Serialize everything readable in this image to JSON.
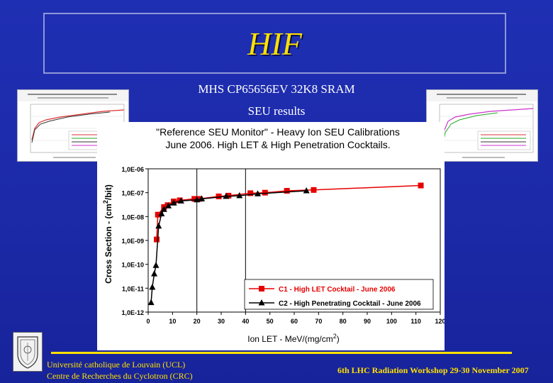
{
  "slide": {
    "title": "HIF",
    "subtitle_1": "MHS   CP65656EV  32K8  SRAM",
    "subtitle_2": "SEU results"
  },
  "footer": {
    "left_line1": "Université catholique de Louvain  (UCL)",
    "left_line2": "Centre de Recherches du Cyclotron (CRC)",
    "right": "6th LHC Radiation Workshop 29-30 November 2007"
  },
  "colors": {
    "background": "#1f2fb3",
    "accent": "#ffe100",
    "series_1": "#e60000",
    "series_2": "#000000"
  },
  "chart_data": {
    "type": "line",
    "title_line1": "\"Reference SEU Monitor\" - Heavy Ion SEU Calibrations",
    "title_line2": "June 2006. High LET & High Penetration Cocktails.",
    "xlabel": "Ion LET - MeV/(mg/cm",
    "xlabel_sup": "2",
    "xlabel_tail": ")",
    "ylabel": "Cross Section - (cm",
    "ylabel_sup": "2",
    "ylabel_tail": "/bit)",
    "x_ticks": [
      "0",
      "10",
      "20",
      "30",
      "40",
      "50",
      "60",
      "70",
      "80",
      "90",
      "100",
      "110",
      "120"
    ],
    "y_ticks": [
      "1,0E-12",
      "1,0E-11",
      "1,0E-10",
      "1,0E-09",
      "1,0E-08",
      "1,0E-07",
      "1,0E-06"
    ],
    "xlim": [
      0,
      120
    ],
    "ylim": [
      1e-12,
      1e-06
    ],
    "yscale": "log",
    "vertical_lines_x": [
      20,
      40
    ],
    "legend_position": "bottom-right",
    "series": [
      {
        "name": "C1 - High LET Cocktail - June 2006",
        "color": "#e60000",
        "marker": "square",
        "points": [
          [
            3.5,
            1.1e-09
          ],
          [
            4,
            1.2e-08
          ],
          [
            6.5,
            2.5e-08
          ],
          [
            8,
            3e-08
          ],
          [
            10.5,
            4.3e-08
          ],
          [
            13,
            4.8e-08
          ],
          [
            19,
            5.5e-08
          ],
          [
            21,
            5.5e-08
          ],
          [
            29,
            7e-08
          ],
          [
            33,
            7.5e-08
          ],
          [
            42,
            9.5e-08
          ],
          [
            48,
            1e-07
          ],
          [
            57,
            1.2e-07
          ],
          [
            68,
            1.3e-07
          ],
          [
            112,
            2e-07
          ]
        ]
      },
      {
        "name": "C2 - High Penetrating Cocktail - June 2006",
        "color": "#000000",
        "marker": "triangle",
        "points": [
          [
            1.2,
            2.5e-12
          ],
          [
            1.7,
            1.1e-11
          ],
          [
            2.5,
            4e-11
          ],
          [
            3.2,
            9e-11
          ],
          [
            4.3,
            4e-09
          ],
          [
            5.5,
            1.3e-08
          ],
          [
            6.5,
            2e-08
          ],
          [
            8.3,
            2.8e-08
          ],
          [
            10.5,
            3.7e-08
          ],
          [
            13.5,
            4.5e-08
          ],
          [
            20,
            5e-08
          ],
          [
            22,
            5.5e-08
          ],
          [
            32,
            7e-08
          ],
          [
            37.5,
            7.5e-08
          ],
          [
            45,
            9e-08
          ],
          [
            65,
            1.2e-07
          ]
        ]
      }
    ]
  }
}
